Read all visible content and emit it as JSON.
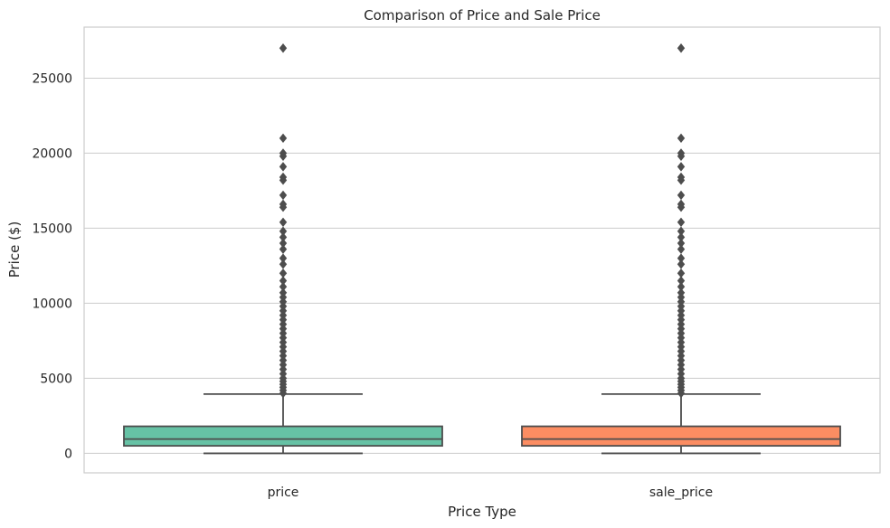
{
  "chart_data": {
    "type": "box",
    "title": "Comparison of Price and Sale Price",
    "xlabel": "Price Type",
    "ylabel": "Price ($)",
    "ylim": [
      -1300,
      28400
    ],
    "yticks": [
      0,
      5000,
      10000,
      15000,
      20000,
      25000
    ],
    "grid": true,
    "categories": [
      "price",
      "sale_price"
    ],
    "colors": [
      "#66c2a5",
      "#fc8d62"
    ],
    "series": [
      {
        "category": "price",
        "min": 0,
        "q1": 500,
        "median": 950,
        "q3": 1800,
        "max": 3950,
        "outliers": [
          4000,
          4200,
          4400,
          4600,
          4800,
          5000,
          5300,
          5600,
          5900,
          6200,
          6500,
          6800,
          7100,
          7400,
          7700,
          8000,
          8300,
          8600,
          8900,
          9200,
          9500,
          9800,
          10100,
          10400,
          10700,
          11100,
          11500,
          12000,
          12600,
          13000,
          13600,
          14000,
          14400,
          14800,
          15400,
          16400,
          16600,
          17200,
          18200,
          18400,
          19100,
          19800,
          20000,
          21000,
          27000
        ]
      },
      {
        "category": "sale_price",
        "min": 0,
        "q1": 500,
        "median": 950,
        "q3": 1800,
        "max": 3950,
        "outliers": [
          4000,
          4200,
          4400,
          4600,
          4800,
          5000,
          5300,
          5600,
          5900,
          6200,
          6500,
          6800,
          7100,
          7400,
          7700,
          8000,
          8300,
          8600,
          8900,
          9200,
          9500,
          9800,
          10100,
          10400,
          10700,
          11100,
          11500,
          12000,
          12600,
          13000,
          13600,
          14000,
          14400,
          14800,
          15400,
          16400,
          16600,
          17200,
          18200,
          18400,
          19100,
          19800,
          20000,
          21000,
          27000
        ]
      }
    ]
  }
}
